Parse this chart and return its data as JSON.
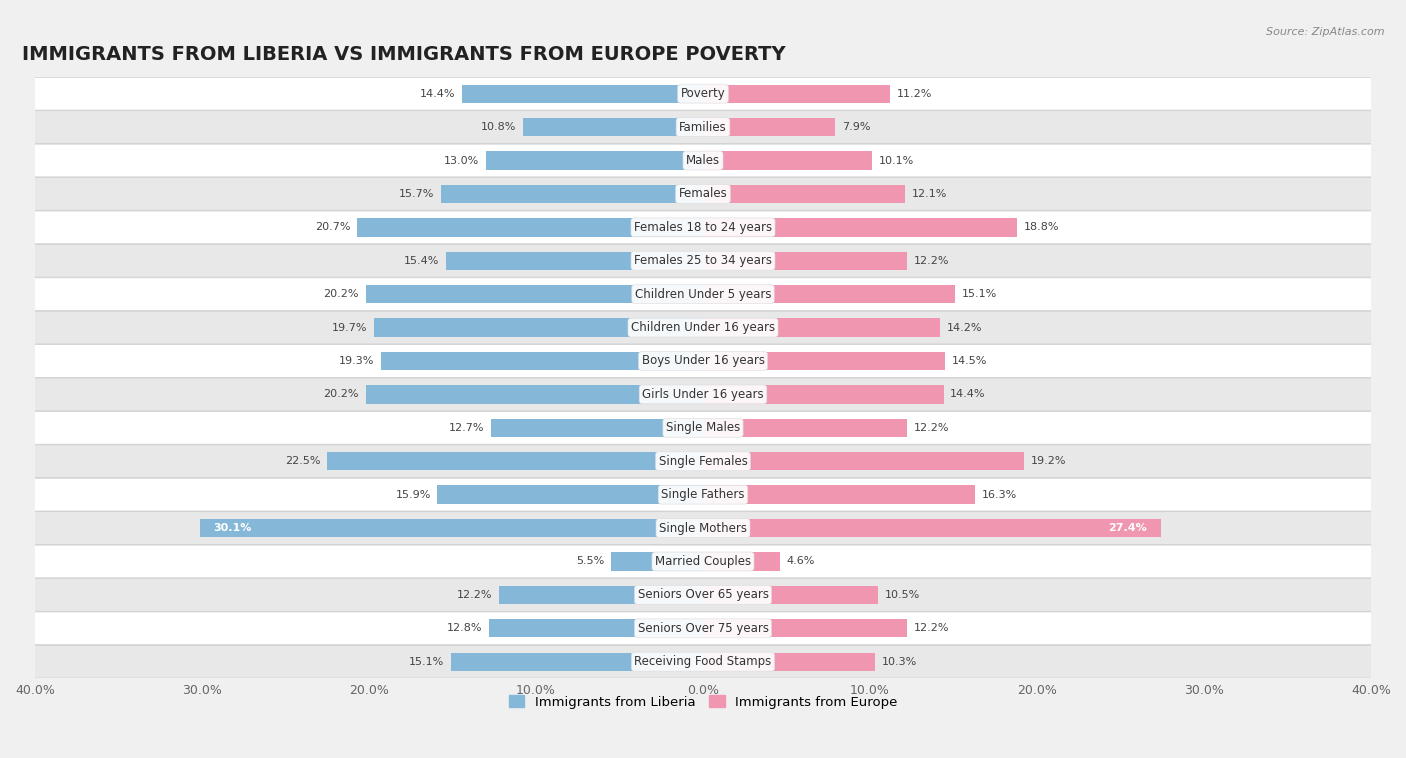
{
  "title": "IMMIGRANTS FROM LIBERIA VS IMMIGRANTS FROM EUROPE POVERTY",
  "source": "Source: ZipAtlas.com",
  "categories": [
    "Poverty",
    "Families",
    "Males",
    "Females",
    "Females 18 to 24 years",
    "Females 25 to 34 years",
    "Children Under 5 years",
    "Children Under 16 years",
    "Boys Under 16 years",
    "Girls Under 16 years",
    "Single Males",
    "Single Females",
    "Single Fathers",
    "Single Mothers",
    "Married Couples",
    "Seniors Over 65 years",
    "Seniors Over 75 years",
    "Receiving Food Stamps"
  ],
  "liberia_values": [
    14.4,
    10.8,
    13.0,
    15.7,
    20.7,
    15.4,
    20.2,
    19.7,
    19.3,
    20.2,
    12.7,
    22.5,
    15.9,
    30.1,
    5.5,
    12.2,
    12.8,
    15.1
  ],
  "europe_values": [
    11.2,
    7.9,
    10.1,
    12.1,
    18.8,
    12.2,
    15.1,
    14.2,
    14.5,
    14.4,
    12.2,
    19.2,
    16.3,
    27.4,
    4.6,
    10.5,
    12.2,
    10.3
  ],
  "liberia_color": "#85b8d8",
  "europe_color": "#f096b0",
  "liberia_label": "Immigrants from Liberia",
  "europe_label": "Immigrants from Europe",
  "xlim": 40.0,
  "bar_height": 0.55,
  "bg_color": "#f0f0f0",
  "row_white_color": "#ffffff",
  "row_gray_color": "#e8e8e8",
  "title_fontsize": 14,
  "label_fontsize": 8.5,
  "value_fontsize": 8.0,
  "axis_tick_fontsize": 9.0
}
